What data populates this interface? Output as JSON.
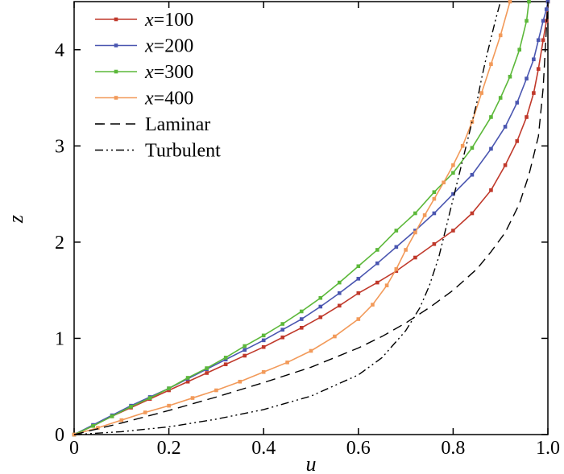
{
  "chart_data": {
    "type": "line",
    "xlabel": "u",
    "ylabel": "z",
    "xlim": [
      0,
      1
    ],
    "ylim": [
      0,
      4.5
    ],
    "xticks": [
      "0",
      "0.2",
      "0.4",
      "0.6",
      "0.8",
      "1.0"
    ],
    "yticks": [
      "0",
      "1",
      "2",
      "3",
      "4"
    ],
    "grid": false,
    "legend_position": "top-left",
    "series": [
      {
        "name": "x=100",
        "name_var": "x",
        "name_val": "=100",
        "color": "#c0392b",
        "style": "solid-marker",
        "x": [
          0,
          0.04,
          0.08,
          0.12,
          0.16,
          0.2,
          0.24,
          0.28,
          0.32,
          0.36,
          0.4,
          0.44,
          0.48,
          0.52,
          0.56,
          0.6,
          0.64,
          0.68,
          0.72,
          0.76,
          0.8,
          0.84,
          0.88,
          0.91,
          0.935,
          0.955,
          0.97,
          0.98,
          0.99,
          0.997,
          1.0
        ],
        "y": [
          0,
          0.09,
          0.19,
          0.28,
          0.37,
          0.46,
          0.55,
          0.64,
          0.73,
          0.82,
          0.91,
          1.01,
          1.11,
          1.22,
          1.34,
          1.47,
          1.58,
          1.7,
          1.84,
          1.98,
          2.12,
          2.3,
          2.54,
          2.8,
          3.05,
          3.3,
          3.55,
          3.8,
          4.1,
          4.3,
          4.5
        ]
      },
      {
        "name": "x=200",
        "name_var": "x",
        "name_val": "=200",
        "color": "#4a56b0",
        "style": "solid-marker",
        "x": [
          0,
          0.04,
          0.08,
          0.12,
          0.16,
          0.2,
          0.24,
          0.28,
          0.32,
          0.36,
          0.4,
          0.44,
          0.48,
          0.52,
          0.56,
          0.6,
          0.64,
          0.68,
          0.72,
          0.76,
          0.8,
          0.84,
          0.88,
          0.91,
          0.935,
          0.955,
          0.97,
          0.98,
          0.99,
          0.997,
          1.0
        ],
        "y": [
          0,
          0.1,
          0.2,
          0.3,
          0.39,
          0.48,
          0.58,
          0.68,
          0.78,
          0.88,
          0.98,
          1.09,
          1.2,
          1.33,
          1.47,
          1.62,
          1.78,
          1.95,
          2.12,
          2.3,
          2.5,
          2.7,
          2.97,
          3.2,
          3.45,
          3.7,
          3.9,
          4.1,
          4.3,
          4.42,
          4.5
        ]
      },
      {
        "name": "x=300",
        "name_var": "x",
        "name_val": "=300",
        "color": "#5cb83a",
        "style": "solid-marker",
        "x": [
          0,
          0.04,
          0.08,
          0.12,
          0.16,
          0.2,
          0.24,
          0.28,
          0.32,
          0.36,
          0.4,
          0.44,
          0.48,
          0.52,
          0.56,
          0.6,
          0.64,
          0.68,
          0.72,
          0.76,
          0.8,
          0.84,
          0.88,
          0.9,
          0.92,
          0.94,
          0.955,
          0.96
        ],
        "y": [
          0,
          0.09,
          0.19,
          0.29,
          0.38,
          0.48,
          0.59,
          0.69,
          0.8,
          0.92,
          1.03,
          1.15,
          1.28,
          1.42,
          1.58,
          1.75,
          1.92,
          2.12,
          2.3,
          2.52,
          2.72,
          2.98,
          3.3,
          3.5,
          3.72,
          4.0,
          4.3,
          4.5
        ]
      },
      {
        "name": "x=400",
        "name_var": "x",
        "name_val": "=400",
        "color": "#f29a5a",
        "style": "solid-marker",
        "x": [
          0,
          0.05,
          0.1,
          0.15,
          0.2,
          0.25,
          0.3,
          0.35,
          0.4,
          0.45,
          0.5,
          0.55,
          0.6,
          0.63,
          0.66,
          0.68,
          0.7,
          0.72,
          0.74,
          0.76,
          0.78,
          0.8,
          0.82,
          0.84,
          0.86,
          0.88,
          0.9,
          0.92
        ],
        "y": [
          0,
          0.07,
          0.15,
          0.23,
          0.3,
          0.38,
          0.46,
          0.55,
          0.65,
          0.75,
          0.87,
          1.02,
          1.2,
          1.35,
          1.55,
          1.72,
          1.92,
          2.1,
          2.28,
          2.45,
          2.62,
          2.8,
          3.0,
          3.25,
          3.55,
          3.85,
          4.15,
          4.5
        ]
      },
      {
        "name": "Laminar",
        "color": "#000000",
        "style": "dashed",
        "x": [
          0,
          0.1,
          0.2,
          0.3,
          0.4,
          0.5,
          0.6,
          0.65,
          0.7,
          0.75,
          0.8,
          0.85,
          0.88,
          0.91,
          0.94,
          0.96,
          0.98,
          0.99,
          1.0
        ],
        "y": [
          0,
          0.12,
          0.25,
          0.39,
          0.54,
          0.7,
          0.9,
          1.02,
          1.16,
          1.32,
          1.5,
          1.72,
          1.9,
          2.1,
          2.4,
          2.7,
          3.1,
          3.6,
          4.5
        ]
      },
      {
        "name": "Turbulent",
        "color": "#000000",
        "style": "dashdotdot",
        "x": [
          0,
          0.1,
          0.2,
          0.3,
          0.4,
          0.5,
          0.6,
          0.65,
          0.7,
          0.73,
          0.75,
          0.77,
          0.78,
          0.79,
          0.8,
          0.81,
          0.82,
          0.83,
          0.84,
          0.85,
          0.86,
          0.87,
          0.88,
          0.89,
          0.9
        ],
        "y": [
          0,
          0.03,
          0.08,
          0.16,
          0.26,
          0.4,
          0.62,
          0.8,
          1.08,
          1.32,
          1.55,
          1.85,
          2.05,
          2.25,
          2.45,
          2.65,
          2.85,
          3.05,
          3.25,
          3.45,
          3.7,
          3.92,
          4.12,
          4.32,
          4.5
        ]
      }
    ]
  }
}
